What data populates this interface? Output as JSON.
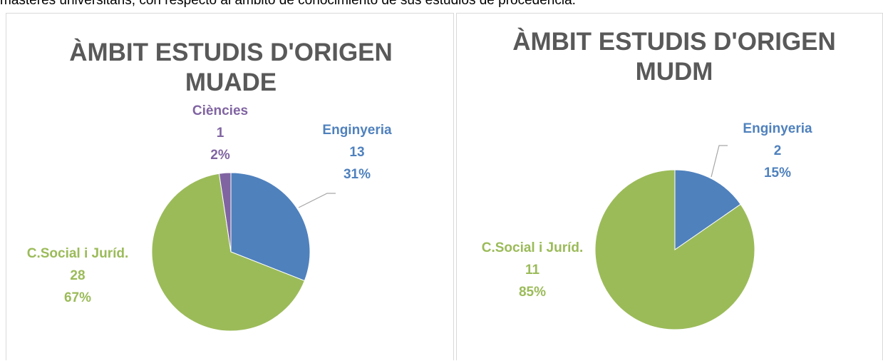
{
  "caption": "màsteres universitaris, con respecto al ámbito de conocimiento de sus estudios de procedencia.",
  "chart_data": [
    {
      "type": "pie",
      "title": "ÀMBIT ESTUDIS D'ORIGEN MUADE",
      "categories": [
        "Enginyeria",
        "C.Social i Juríd.",
        "Ciències"
      ],
      "values": [
        13,
        28,
        1
      ],
      "percent_labels": [
        "31%",
        "67%",
        "2%"
      ],
      "colors": [
        "#4f81bd",
        "#9bbb59",
        "#8064a2"
      ]
    },
    {
      "type": "pie",
      "title": "ÀMBIT ESTUDIS D'ORIGEN MUDM",
      "categories": [
        "Enginyeria",
        "C.Social i Juríd."
      ],
      "values": [
        2,
        11
      ],
      "percent_labels": [
        "15%",
        "85%"
      ],
      "colors": [
        "#4f81bd",
        "#9bbb59"
      ]
    }
  ]
}
